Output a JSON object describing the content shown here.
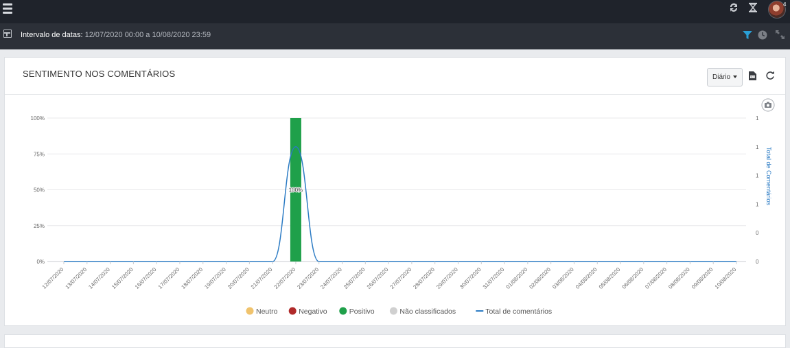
{
  "header": {
    "menu_icon": "hamburger-menu-icon",
    "icons": [
      "refresh-icon",
      "hourglass-icon",
      "user-avatar"
    ],
    "notification_count": "4"
  },
  "date_bar": {
    "label": "Intervalo de datas:",
    "value": "12/07/2020 00:00 a 10/08/2020 23:59",
    "icons": [
      "layout-icon",
      "filter-icon",
      "clock-icon",
      "expand-icon"
    ],
    "filter_color": "#2a9fd6"
  },
  "card": {
    "title": "SENTIMENTO NOS COMENTÁRIOS",
    "period_select": "Diário",
    "icons": [
      "export-file-icon",
      "refresh-icon",
      "camera-icon"
    ]
  },
  "chart_data": {
    "type": "bar",
    "stacked": true,
    "categories": [
      "12/07/2020",
      "13/07/2020",
      "14/07/2020",
      "15/07/2020",
      "16/07/2020",
      "17/07/2020",
      "18/07/2020",
      "19/07/2020",
      "20/07/2020",
      "21/07/2020",
      "22/07/2020",
      "23/07/2020",
      "24/07/2020",
      "25/07/2020",
      "26/07/2020",
      "27/07/2020",
      "28/07/2020",
      "29/07/2020",
      "30/07/2020",
      "31/07/2020",
      "01/08/2020",
      "02/08/2020",
      "03/08/2020",
      "04/08/2020",
      "05/08/2020",
      "06/08/2020",
      "07/08/2020",
      "08/08/2020",
      "09/08/2020",
      "10/08/2020"
    ],
    "y_left_ticks": [
      "0%",
      "25%",
      "50%",
      "75%",
      "100%"
    ],
    "y_left_range": [
      0,
      100
    ],
    "y_right_label": "Total de Comentários",
    "y_right_ticks": [
      "0",
      "0",
      "1",
      "1",
      "1",
      "1"
    ],
    "y_right_range": [
      0,
      1.25
    ],
    "series": [
      {
        "name": "Neutro",
        "color": "#f0c36d",
        "values": [
          0,
          0,
          0,
          0,
          0,
          0,
          0,
          0,
          0,
          0,
          0,
          0,
          0,
          0,
          0,
          0,
          0,
          0,
          0,
          0,
          0,
          0,
          0,
          0,
          0,
          0,
          0,
          0,
          0,
          0
        ]
      },
      {
        "name": "Negativo",
        "color": "#b02a2a",
        "values": [
          0,
          0,
          0,
          0,
          0,
          0,
          0,
          0,
          0,
          0,
          0,
          0,
          0,
          0,
          0,
          0,
          0,
          0,
          0,
          0,
          0,
          0,
          0,
          0,
          0,
          0,
          0,
          0,
          0,
          0
        ]
      },
      {
        "name": "Positivo",
        "color": "#1fa04a",
        "values": [
          0,
          0,
          0,
          0,
          0,
          0,
          0,
          0,
          0,
          0,
          100,
          0,
          0,
          0,
          0,
          0,
          0,
          0,
          0,
          0,
          0,
          0,
          0,
          0,
          0,
          0,
          0,
          0,
          0,
          0
        ]
      },
      {
        "name": "Não classificados",
        "color": "#d0d0d0",
        "values": [
          0,
          0,
          0,
          0,
          0,
          0,
          0,
          0,
          0,
          0,
          0,
          0,
          0,
          0,
          0,
          0,
          0,
          0,
          0,
          0,
          0,
          0,
          0,
          0,
          0,
          0,
          0,
          0,
          0,
          0
        ]
      }
    ],
    "line_series": {
      "name": "Total de comentários",
      "color": "#2b7bc4",
      "values": [
        0,
        0,
        0,
        0,
        0,
        0,
        0,
        0,
        0,
        0,
        1,
        0,
        0,
        0,
        0,
        0,
        0,
        0,
        0,
        0,
        0,
        0,
        0,
        0,
        0,
        0,
        0,
        0,
        0,
        0
      ]
    },
    "data_labels": [
      {
        "category": "22/07/2020",
        "text": "100%"
      }
    ],
    "legend": [
      "Neutro",
      "Negativo",
      "Positivo",
      "Não classificados",
      "Total de comentários"
    ],
    "legend_position": "bottom",
    "grid": true
  }
}
